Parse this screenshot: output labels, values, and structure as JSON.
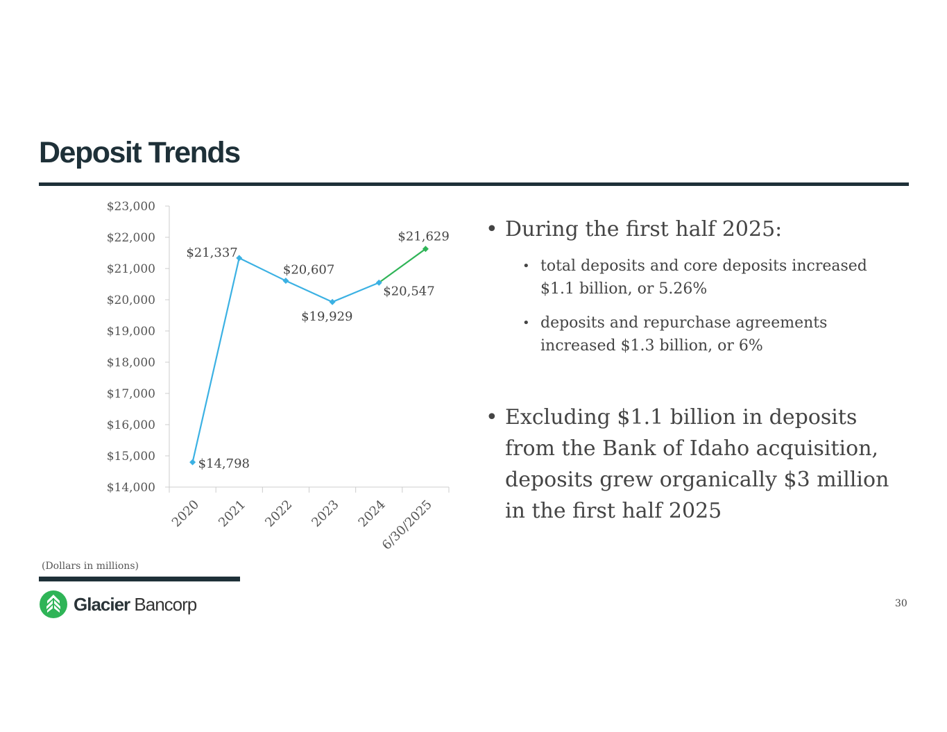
{
  "header": {
    "title": "Deposit Trends"
  },
  "chart_data": {
    "type": "line",
    "categories": [
      "2020",
      "2021",
      "2022",
      "2023",
      "2024",
      "6/30/2025"
    ],
    "values": [
      14798,
      21337,
      20607,
      19929,
      20547,
      21629
    ],
    "data_labels": [
      "$14,798",
      "$21,337",
      "$20,607",
      "$19,929",
      "$20,547",
      "$21,629"
    ],
    "yticks": [
      "$14,000",
      "$15,000",
      "$16,000",
      "$17,000",
      "$18,000",
      "$19,000",
      "$20,000",
      "$21,000",
      "$22,000",
      "$23,000"
    ],
    "ylim": [
      14000,
      23000
    ],
    "grid": false,
    "colors": {
      "main": "#3bb1e3",
      "latest": "#2fb457"
    }
  },
  "bullets": [
    {
      "text": "During the first half 2025:",
      "sub": [
        "total deposits and core deposits increased $1.1 billion, or 5.26%",
        "deposits and repurchase agreements increased $1.3 billion, or 6%"
      ]
    },
    {
      "text": "Excluding $1.1 billion in deposits from the Bank of Idaho acquisition, deposits grew organically $3 million in the first half 2025"
    }
  ],
  "footer": {
    "note": "(Dollars in millions)",
    "logo_bold": "Glacier",
    "logo_light": "Bancorp",
    "page_number": "30"
  },
  "colors": {
    "title": "#1e3038",
    "logo_green": "#2fb457"
  }
}
